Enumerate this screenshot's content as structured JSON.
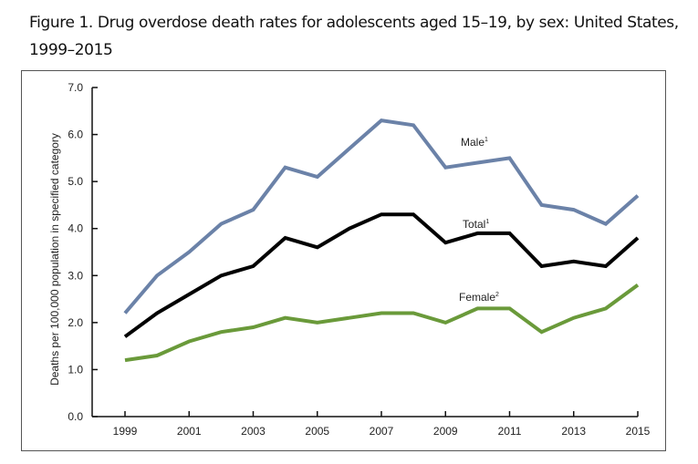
{
  "title": "Figure 1. Drug overdose death rates for adolescents aged 15–19, by sex: United States, 1999–2015",
  "chart_data": {
    "type": "line",
    "title": "Figure 1. Drug overdose death rates for adolescents aged 15–19, by sex: United States, 1999–2015",
    "xlabel": "",
    "ylabel": "Deaths per 100,000 population in specified category",
    "x": [
      1999,
      2000,
      2001,
      2002,
      2003,
      2004,
      2005,
      2006,
      2007,
      2008,
      2009,
      2010,
      2011,
      2012,
      2013,
      2014,
      2015
    ],
    "xticks": [
      "1999",
      "2001",
      "2003",
      "2005",
      "2007",
      "2009",
      "2011",
      "2013",
      "2015"
    ],
    "xlim": [
      1999,
      2015
    ],
    "ylim": [
      0,
      7
    ],
    "yticks": [
      "0.0",
      "1.0",
      "2.0",
      "3.0",
      "4.0",
      "5.0",
      "6.0",
      "7.0"
    ],
    "grid": false,
    "legend": "inline-labels",
    "series": [
      {
        "name": "Male",
        "label": "Male",
        "sup": "1",
        "color": "#6b82a8",
        "values": [
          2.2,
          3.0,
          3.5,
          4.1,
          4.4,
          5.3,
          5.1,
          5.7,
          6.3,
          6.2,
          5.3,
          5.4,
          5.5,
          4.5,
          4.4,
          4.1,
          4.7
        ]
      },
      {
        "name": "Total",
        "label": "Total",
        "sup": "1",
        "color": "#000000",
        "values": [
          1.7,
          2.2,
          2.6,
          3.0,
          3.2,
          3.8,
          3.6,
          4.0,
          4.3,
          4.3,
          3.7,
          3.9,
          3.9,
          3.2,
          3.3,
          3.2,
          3.8
        ]
      },
      {
        "name": "Female",
        "label": "Female",
        "sup": "2",
        "color": "#6a9a3a",
        "values": [
          1.2,
          1.3,
          1.6,
          1.8,
          1.9,
          2.1,
          2.0,
          2.1,
          2.2,
          2.2,
          2.0,
          2.3,
          2.3,
          1.8,
          2.1,
          2.3,
          2.8
        ]
      }
    ]
  }
}
